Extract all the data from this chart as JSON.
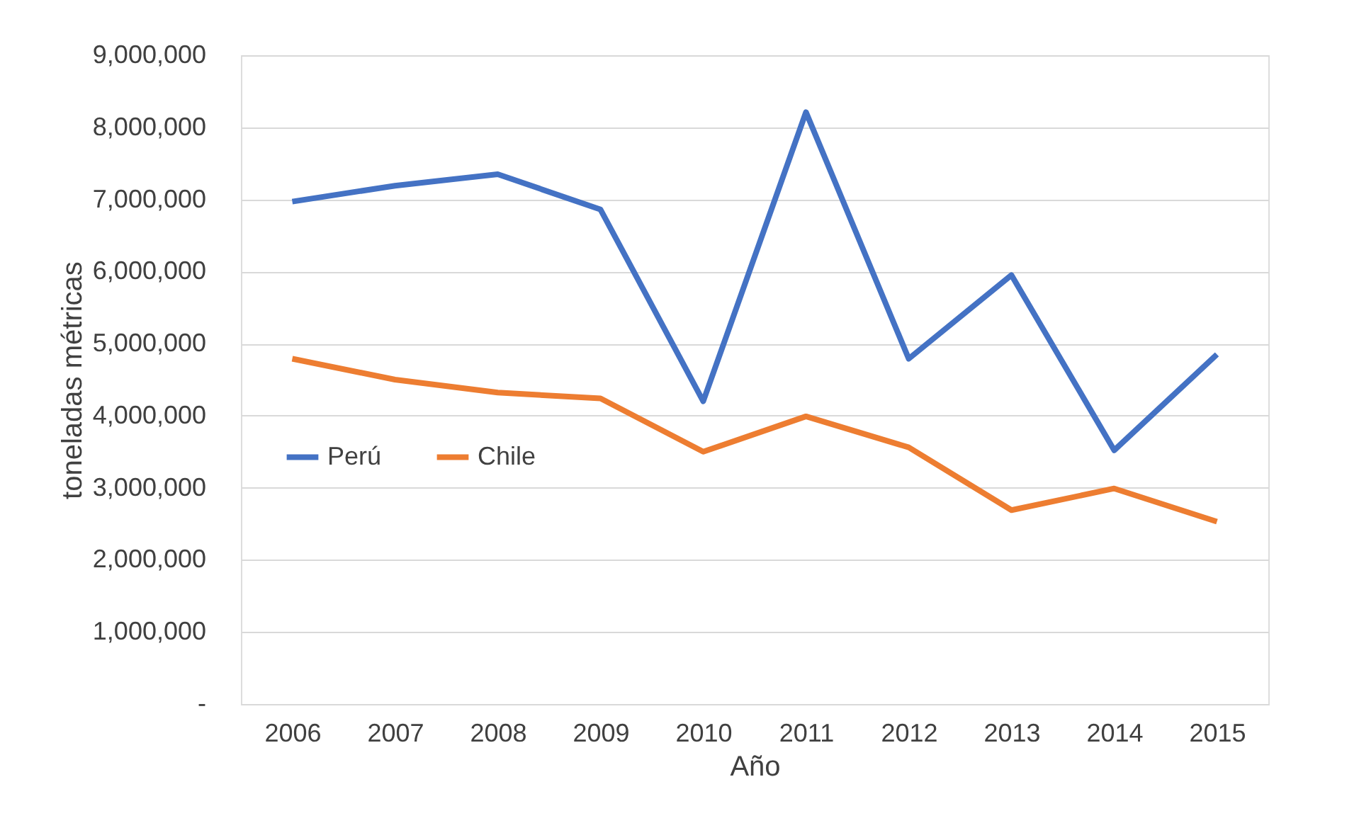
{
  "chart_data": {
    "type": "line",
    "xlabel": "Año",
    "ylabel": "toneladas métricas",
    "categories": [
      "2006",
      "2007",
      "2008",
      "2009",
      "2010",
      "2011",
      "2012",
      "2013",
      "2014",
      "2015"
    ],
    "series": [
      {
        "name": "Perú",
        "color": "#4472c4",
        "values": [
          6970000,
          7190000,
          7350000,
          6860000,
          4200000,
          8210000,
          4790000,
          5950000,
          3520000,
          4850000
        ]
      },
      {
        "name": "Chile",
        "color": "#ed7d31",
        "values": [
          4790000,
          4500000,
          4320000,
          4240000,
          3500000,
          3990000,
          3560000,
          2690000,
          2990000,
          2530000
        ]
      }
    ],
    "ylim": [
      0,
      9000000
    ],
    "yticks": [
      {
        "value": 0,
        "label": "-"
      },
      {
        "value": 1000000,
        "label": "1,000,000"
      },
      {
        "value": 2000000,
        "label": "2,000,000"
      },
      {
        "value": 3000000,
        "label": "3,000,000"
      },
      {
        "value": 4000000,
        "label": "4,000,000"
      },
      {
        "value": 5000000,
        "label": "5,000,000"
      },
      {
        "value": 6000000,
        "label": "6,000,000"
      },
      {
        "value": 7000000,
        "label": "7,000,000"
      },
      {
        "value": 8000000,
        "label": "8,000,000"
      },
      {
        "value": 9000000,
        "label": "9,000,000"
      }
    ],
    "grid": "y",
    "legend": "left",
    "marker": "none",
    "line_style": "solid"
  }
}
